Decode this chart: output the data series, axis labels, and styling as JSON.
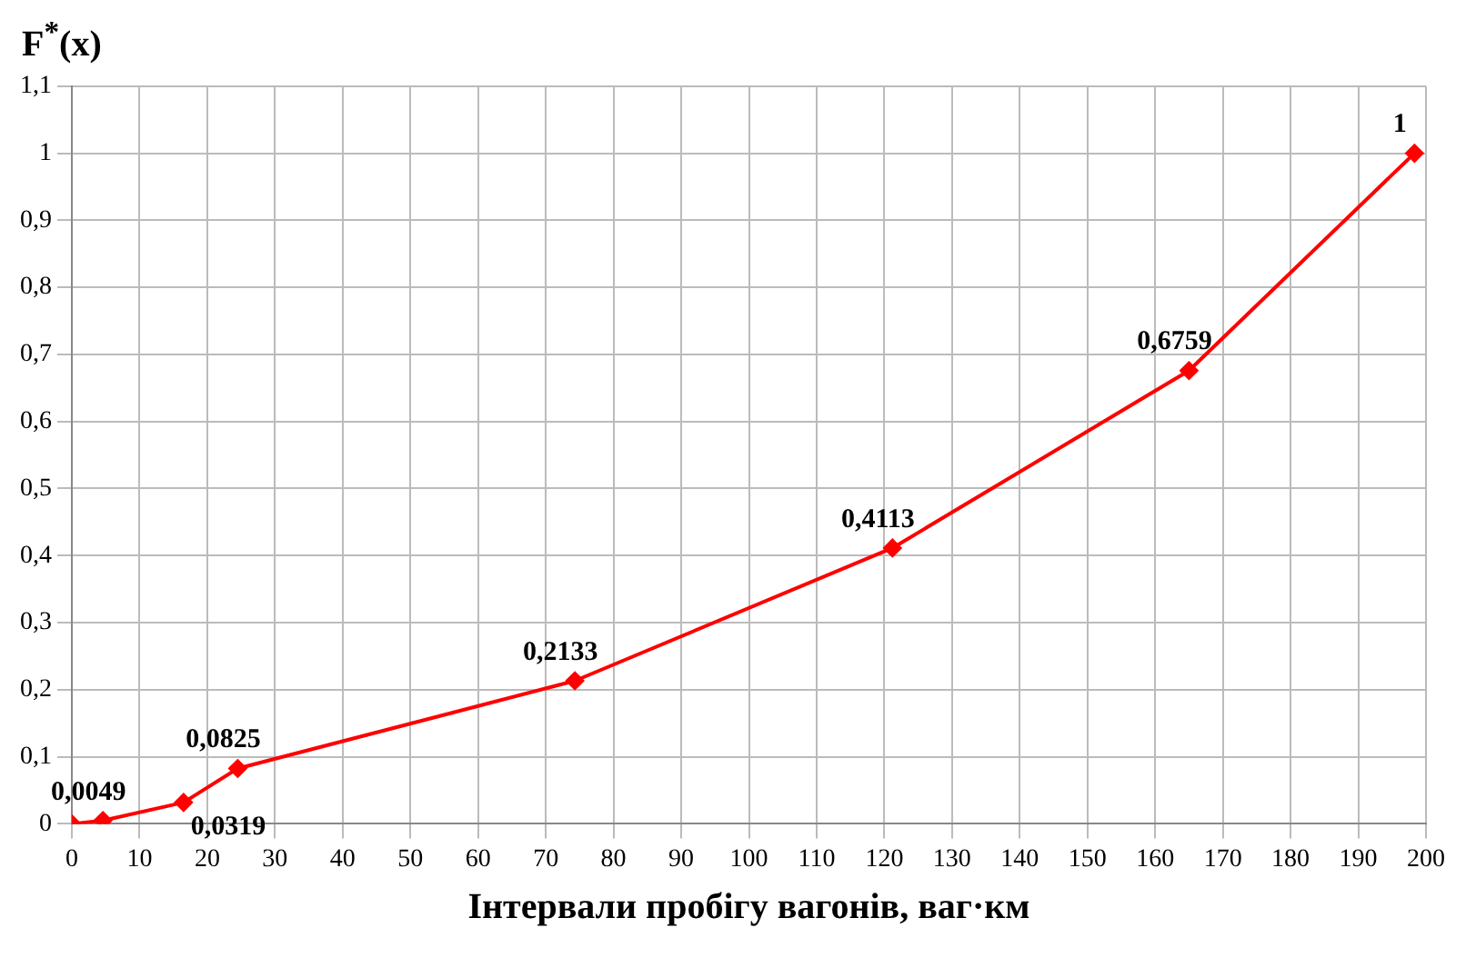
{
  "chart_data": {
    "type": "line",
    "ylabel": "F$^{*}$(x)",
    "xlabel": "Інтервали пробігу вагонів, ваг·км",
    "x": [
      0,
      4.6,
      16.5,
      24.5,
      74.3,
      121.2,
      165,
      198.3
    ],
    "series": [
      {
        "color": "#ff0000",
        "values": [
          0,
          0.0049,
          0.0319,
          0.0825,
          0.2133,
          0.4113,
          0.6759,
          1
        ],
        "value_labels": [
          null,
          "0,0049",
          "0,0319",
          "0,0825",
          "0,2133",
          "0,4113",
          "0,6759",
          "1"
        ]
      }
    ],
    "xlim": [
      0,
      200
    ],
    "xticks": [
      0,
      10,
      20,
      30,
      40,
      50,
      60,
      70,
      80,
      90,
      100,
      110,
      120,
      130,
      140,
      150,
      160,
      170,
      180,
      190,
      200
    ],
    "ylim": [
      0,
      1.1
    ],
    "yticks": [
      0,
      {
        "value": 0.1,
        "label": "0,1"
      },
      {
        "value": 0.2,
        "label": "0,2"
      },
      {
        "value": 0.3,
        "label": "0,3"
      },
      {
        "value": 0.4,
        "label": "0,4"
      },
      {
        "value": 0.5,
        "label": "0,5"
      },
      {
        "value": 0.6,
        "label": "0,6"
      },
      {
        "value": 0.7,
        "label": "0,7"
      },
      {
        "value": 0.8,
        "label": "0,8"
      },
      {
        "value": 0.9,
        "label": "0,9"
      },
      1,
      {
        "value": 1.1,
        "label": "1,1"
      }
    ],
    "grid": true,
    "legend": false,
    "marker": "diamond",
    "line_style": "solid"
  }
}
